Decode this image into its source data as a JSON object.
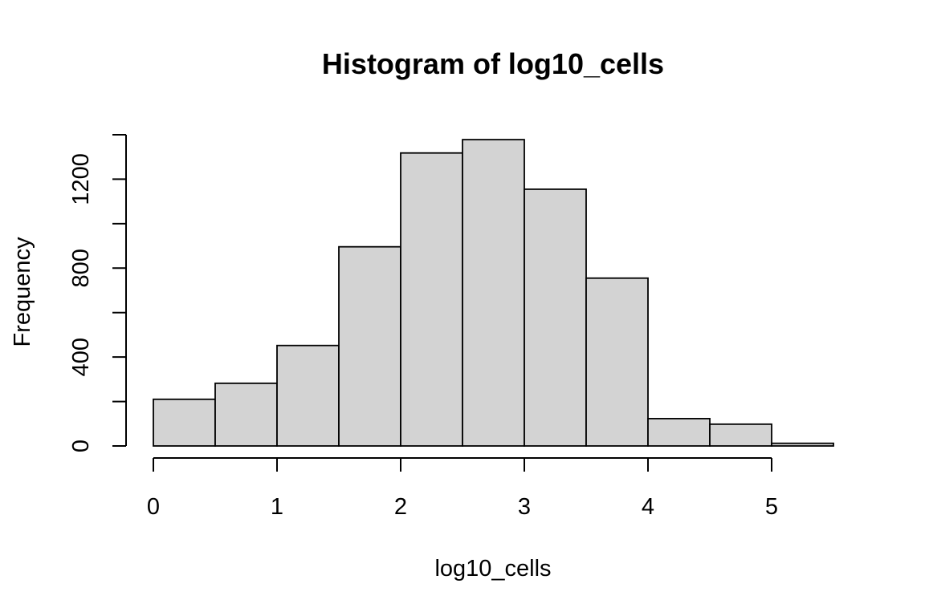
{
  "chart_data": {
    "type": "bar",
    "title": "Histogram of log10_cells",
    "xlabel": "log10_cells",
    "ylabel": "Frequency",
    "bins": [
      {
        "start": 0.0,
        "end": 0.5,
        "count": 210
      },
      {
        "start": 0.5,
        "end": 1.0,
        "count": 282
      },
      {
        "start": 1.0,
        "end": 1.5,
        "count": 452
      },
      {
        "start": 1.5,
        "end": 2.0,
        "count": 896
      },
      {
        "start": 2.0,
        "end": 2.5,
        "count": 1318
      },
      {
        "start": 2.5,
        "end": 3.0,
        "count": 1378
      },
      {
        "start": 3.0,
        "end": 3.5,
        "count": 1155
      },
      {
        "start": 3.5,
        "end": 4.0,
        "count": 755
      },
      {
        "start": 4.0,
        "end": 4.5,
        "count": 123
      },
      {
        "start": 4.5,
        "end": 5.0,
        "count": 98
      },
      {
        "start": 5.0,
        "end": 5.5,
        "count": 12
      }
    ],
    "xlim": [
      0,
      5.5
    ],
    "ylim": [
      0,
      1400
    ],
    "x_ticks": [
      "0",
      "1",
      "2",
      "3",
      "4",
      "5"
    ],
    "y_ticks": [
      "0",
      "400",
      "800",
      "1200"
    ],
    "y_minor_ticks": [
      200,
      600,
      1000,
      1400
    ],
    "bar_fill": "#d3d3d3",
    "bar_stroke": "#000000",
    "grid": false,
    "legend": "none"
  }
}
